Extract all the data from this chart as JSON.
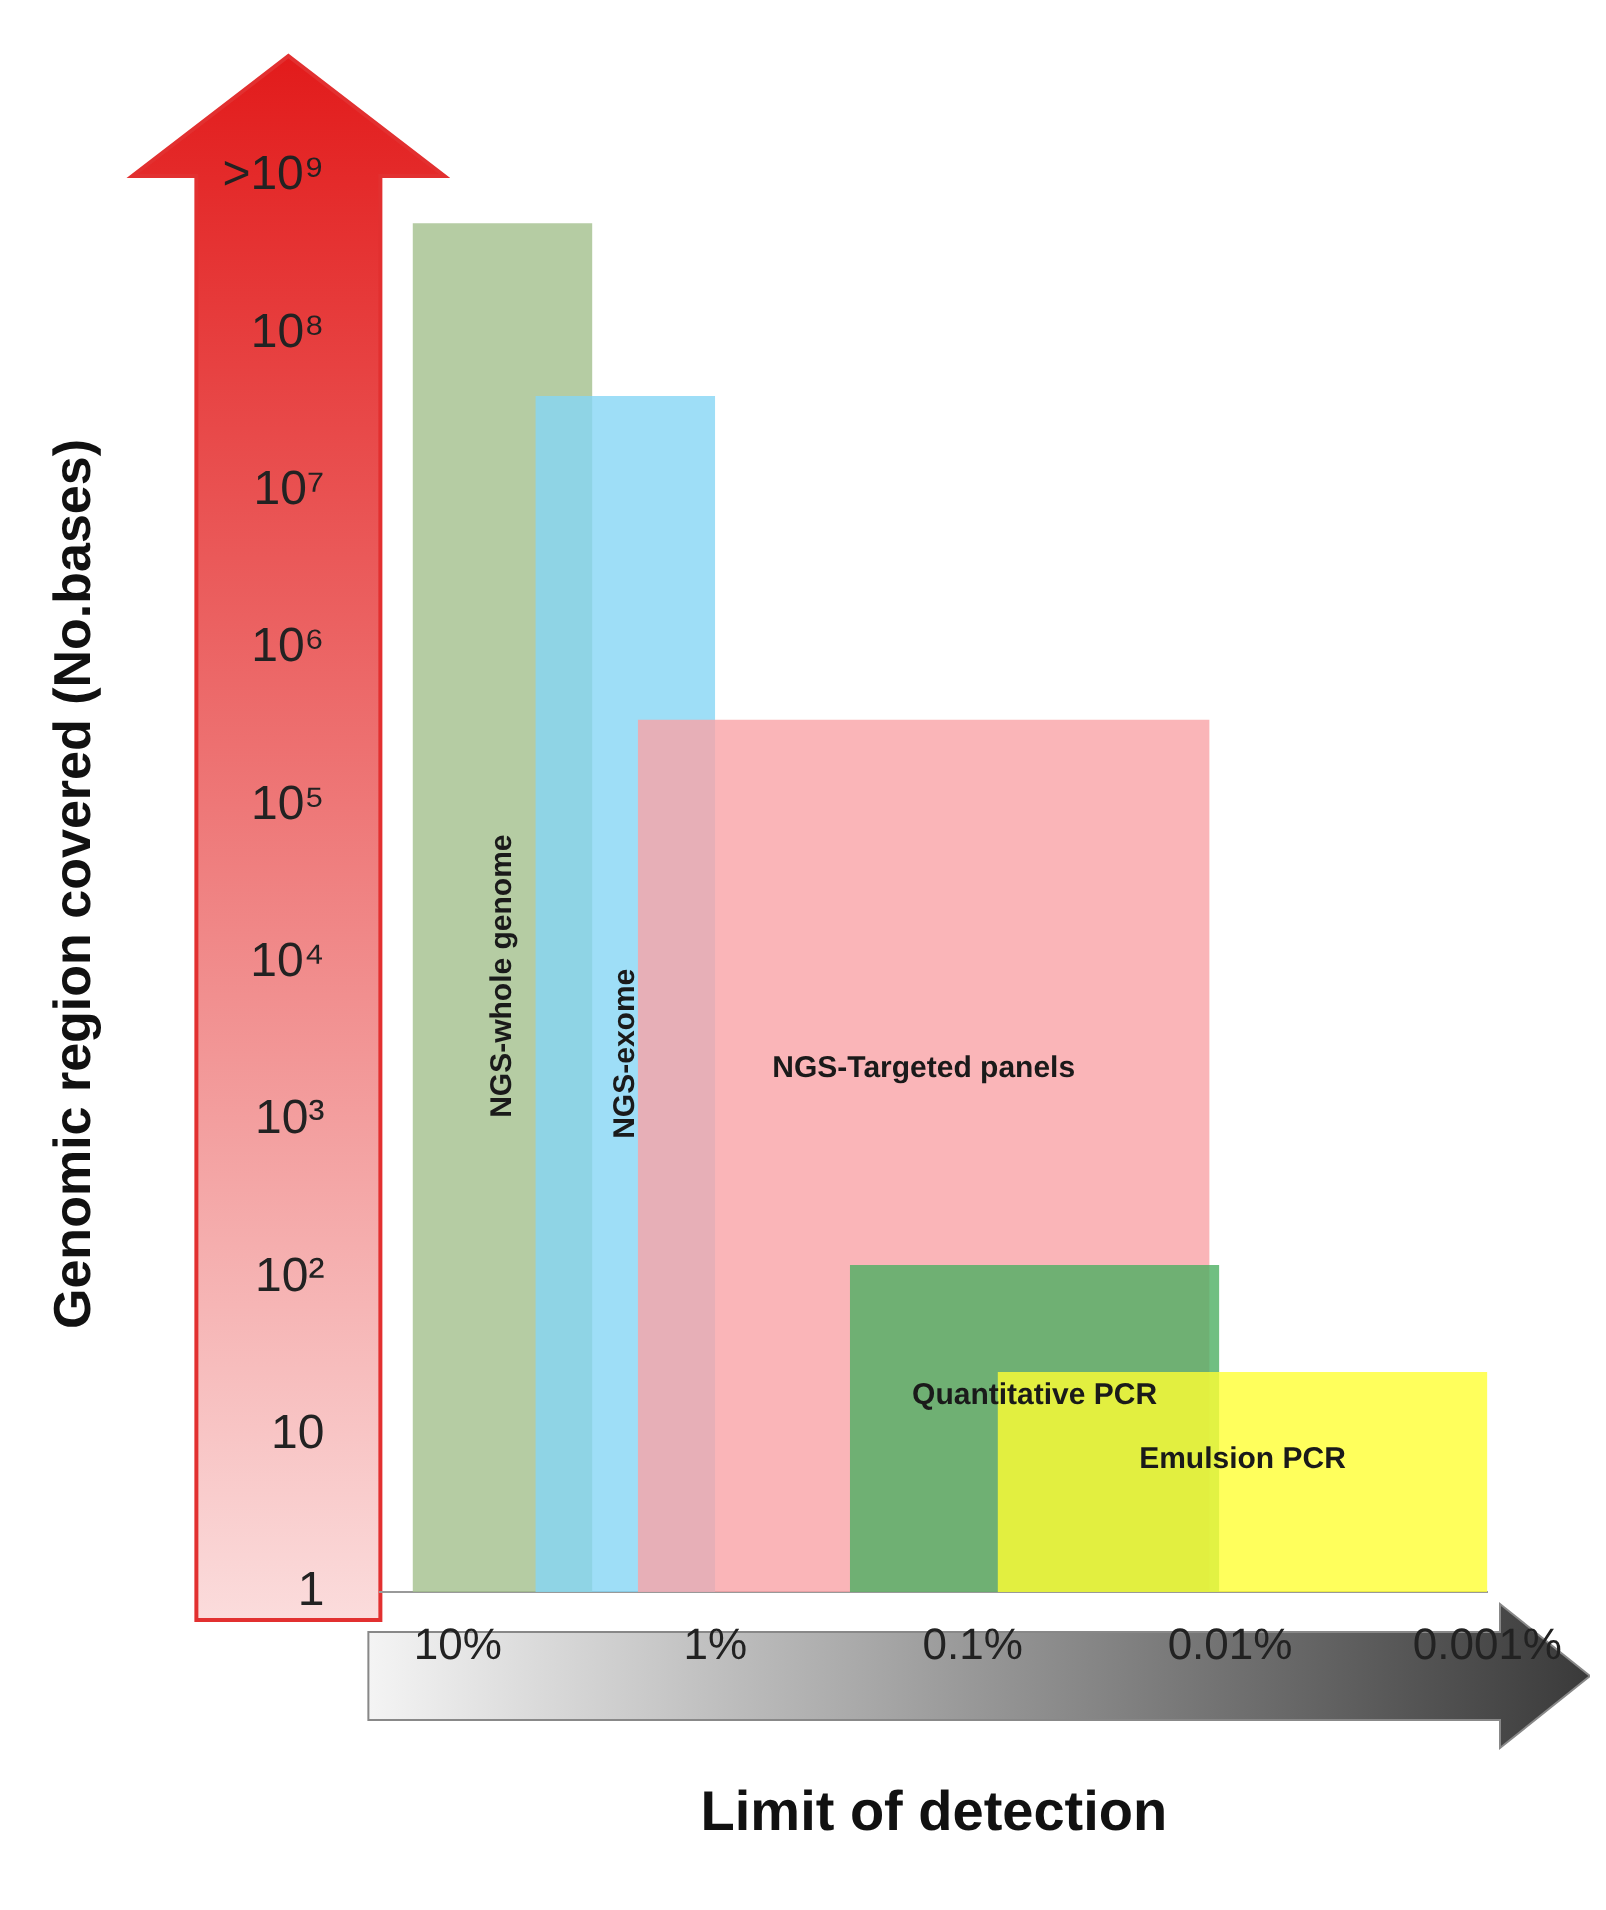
{
  "chart_data": {
    "type": "area",
    "xlabel": "Limit of detection",
    "ylabel": "Genomic region covered (No.bases)",
    "log": "xy",
    "legend": false,
    "grid": false,
    "xlim": [
      20,
      0.001
    ],
    "xticks": [
      {
        "value": 10,
        "label": "10%"
      },
      {
        "value": 1,
        "label": "1%"
      },
      {
        "value": 0.1,
        "label": "0.1%"
      },
      {
        "value": 0.01,
        "label": "0.01%"
      },
      {
        "value": 0.001,
        "label": "0.001%"
      }
    ],
    "ylim": [
      1,
      1000000000
    ],
    "yticks": [
      1,
      10,
      {
        "value": 100,
        "label": "10²"
      },
      {
        "value": 1000,
        "label": "10³"
      },
      {
        "value": 10000,
        "label": "10⁴"
      },
      {
        "value": 100000,
        "label": "10⁵"
      },
      {
        "value": 1000000,
        "label": "10⁶"
      },
      {
        "value": 10000000,
        "label": "10⁷"
      },
      {
        "value": 100000000,
        "label": "10⁸"
      },
      {
        "value": 1000000000,
        "label": ">10⁹"
      }
    ],
    "series": [
      {
        "name": "NGS-whole genome",
        "color": "#a3bf8c",
        "x": [
          15,
          3
        ],
        "values": [
          500000000,
          500000000
        ]
      },
      {
        "name": "NGS-exome",
        "color": "#86d6f5",
        "x": [
          5,
          1
        ],
        "values": [
          40000000,
          40000000
        ]
      },
      {
        "name": "NGS-Targeted panels",
        "color": "#f9a3a6",
        "x": [
          2,
          0.012
        ],
        "values": [
          350000,
          350000
        ]
      },
      {
        "name": "Quantitative PCR",
        "color": "#4caf62",
        "x": [
          0.3,
          0.011
        ],
        "values": [
          120,
          120
        ]
      },
      {
        "name": "Emulsion PCR",
        "color": "#ffff33",
        "x": [
          0.08,
          0.001
        ],
        "values": [
          25,
          25
        ]
      }
    ]
  }
}
